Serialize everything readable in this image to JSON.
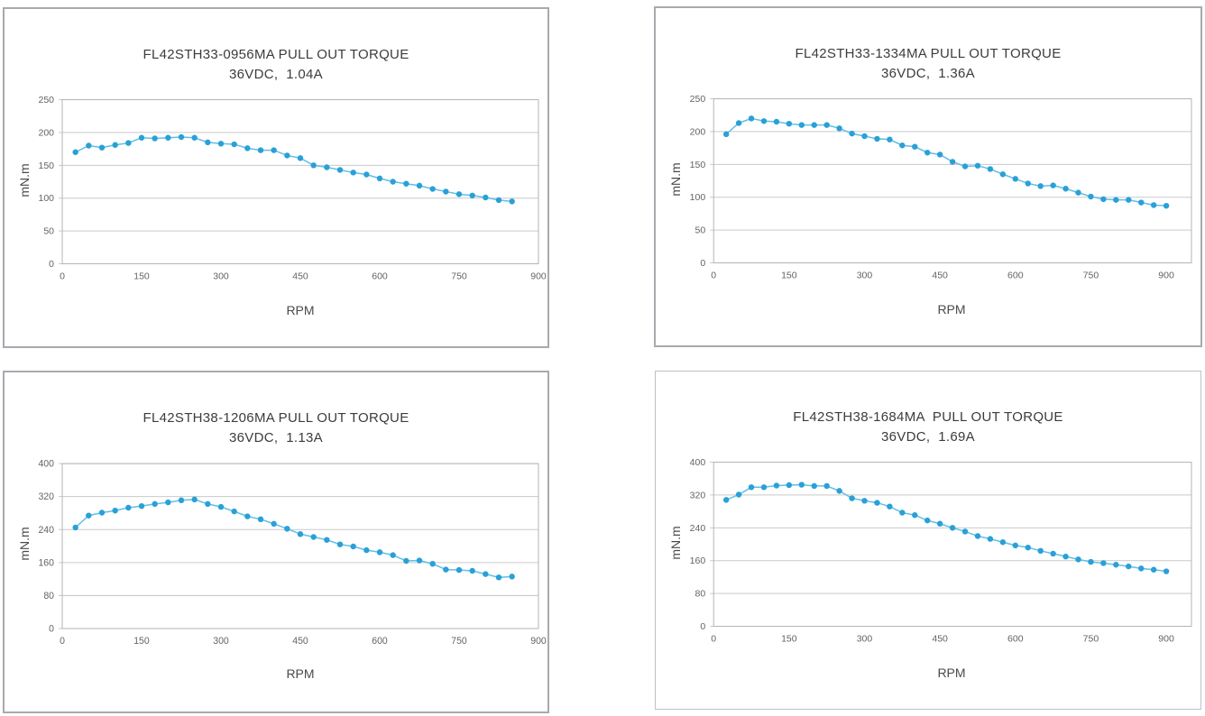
{
  "colors": {
    "marker": "#2aa0d7",
    "line": "#5fc0e8",
    "grid": "#c9c9c9",
    "plot_border": "#b5b5b5",
    "tick_text": "#646464",
    "title_text": "#3c3c3c",
    "panel_border": "#a9a9af",
    "panel_border_light": "#c0c0c4"
  },
  "chart_data": [
    {
      "id": "fl42sth33-0956ma",
      "type": "line",
      "title": "FL42STH33-0956MA PULL OUT TORQUE",
      "subtitle": "36VDC,  1.04A",
      "xlabel": "RPM",
      "ylabel": "mN.m",
      "legend": "none",
      "grid": "horizontal",
      "marker": "circle",
      "xlim": [
        0,
        900
      ],
      "xticks": [
        0,
        150,
        300,
        450,
        600,
        750,
        900
      ],
      "ylim": [
        0,
        250
      ],
      "yticks": [
        0,
        50,
        100,
        150,
        200,
        250
      ],
      "x": [
        25,
        50,
        75,
        100,
        125,
        150,
        175,
        200,
        225,
        250,
        275,
        300,
        325,
        350,
        375,
        400,
        425,
        450,
        475,
        500,
        525,
        550,
        575,
        600,
        625,
        650,
        675,
        700,
        725,
        750,
        775,
        800,
        825,
        850
      ],
      "values": [
        170,
        180,
        177,
        181,
        184,
        192,
        191,
        192,
        193,
        192,
        185,
        183,
        182,
        176,
        173,
        173,
        165,
        161,
        150,
        147,
        143,
        139,
        136,
        130,
        125,
        122,
        119,
        114,
        110,
        106,
        104,
        101,
        97,
        95
      ]
    },
    {
      "id": "fl42sth33-1334ma",
      "type": "line",
      "title": "FL42STH33-1334MA PULL OUT TORQUE",
      "subtitle": "36VDC,  1.36A",
      "xlabel": "RPM",
      "ylabel": "mN.m",
      "legend": "none",
      "grid": "horizontal",
      "marker": "circle",
      "xlim": [
        0,
        950
      ],
      "xticks": [
        0,
        150,
        300,
        450,
        600,
        750,
        900
      ],
      "ylim": [
        0,
        250
      ],
      "yticks": [
        0,
        50,
        100,
        150,
        200,
        250
      ],
      "x": [
        25,
        50,
        75,
        100,
        125,
        150,
        175,
        200,
        225,
        250,
        275,
        300,
        325,
        350,
        375,
        400,
        425,
        450,
        475,
        500,
        525,
        550,
        575,
        600,
        625,
        650,
        675,
        700,
        725,
        750,
        775,
        800,
        825,
        850,
        875,
        900
      ],
      "values": [
        196,
        213,
        220,
        216,
        215,
        212,
        210,
        210,
        210,
        205,
        197,
        193,
        189,
        188,
        179,
        177,
        168,
        165,
        154,
        147,
        148,
        143,
        135,
        128,
        121,
        117,
        118,
        113,
        107,
        101,
        97,
        96,
        96,
        92,
        88,
        87
      ]
    },
    {
      "id": "fl42sth38-1206ma",
      "type": "line",
      "title": "FL42STH38-1206MA PULL OUT TORQUE",
      "subtitle": "36VDC,  1.13A",
      "xlabel": "RPM",
      "ylabel": "mN.m",
      "legend": "none",
      "grid": "horizontal",
      "marker": "circle",
      "xlim": [
        0,
        900
      ],
      "xticks": [
        0,
        150,
        300,
        450,
        600,
        750,
        900
      ],
      "ylim": [
        0,
        400
      ],
      "yticks": [
        0,
        80,
        160,
        240,
        320,
        400
      ],
      "x": [
        25,
        50,
        75,
        100,
        125,
        150,
        175,
        200,
        225,
        250,
        275,
        300,
        325,
        350,
        375,
        400,
        425,
        450,
        475,
        500,
        525,
        550,
        575,
        600,
        625,
        650,
        675,
        700,
        725,
        750,
        775,
        800,
        825,
        850
      ],
      "values": [
        245,
        274,
        281,
        286,
        293,
        297,
        302,
        306,
        311,
        313,
        302,
        295,
        284,
        272,
        265,
        254,
        242,
        229,
        222,
        215,
        204,
        199,
        190,
        185,
        178,
        164,
        165,
        157,
        143,
        142,
        140,
        132,
        124,
        126
      ]
    },
    {
      "id": "fl42sth38-1684ma",
      "type": "line",
      "title": "FL42STH38-1684MA  PULL OUT TORQUE",
      "subtitle": "36VDC,  1.69A",
      "xlabel": "RPM",
      "ylabel": "mN.m",
      "legend": "none",
      "grid": "horizontal",
      "marker": "circle",
      "xlim": [
        0,
        950
      ],
      "xticks": [
        0,
        150,
        300,
        450,
        600,
        750,
        900
      ],
      "ylim": [
        0,
        400
      ],
      "yticks": [
        0,
        80,
        160,
        240,
        320,
        400
      ],
      "x": [
        25,
        50,
        75,
        100,
        125,
        150,
        175,
        200,
        225,
        250,
        275,
        300,
        325,
        350,
        375,
        400,
        425,
        450,
        475,
        500,
        525,
        550,
        575,
        600,
        625,
        650,
        675,
        700,
        725,
        750,
        775,
        800,
        825,
        850,
        875,
        900
      ],
      "values": [
        308,
        321,
        339,
        339,
        343,
        344,
        345,
        342,
        342,
        330,
        312,
        306,
        301,
        292,
        277,
        271,
        258,
        250,
        240,
        231,
        220,
        213,
        205,
        197,
        192,
        184,
        177,
        170,
        163,
        157,
        154,
        150,
        146,
        141,
        138,
        134
      ]
    }
  ]
}
